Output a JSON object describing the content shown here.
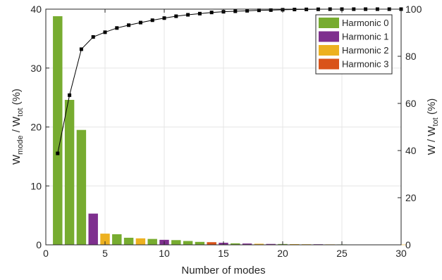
{
  "chart_data": {
    "type": "bar",
    "xlabel": "Number of modes",
    "ylabel_left": {
      "main": "W",
      "sub1": "mode",
      "mid": " / W",
      "sub2": "tot",
      "end": " (%)"
    },
    "ylabel_right": {
      "main": "W / W",
      "sub": "tot",
      "end": " (%)"
    },
    "xlim": [
      0,
      30
    ],
    "ylim_left": [
      0,
      40
    ],
    "ylim_right": [
      0,
      100
    ],
    "xticks": [
      0,
      5,
      10,
      15,
      20,
      25,
      30
    ],
    "yticks_left": [
      0,
      10,
      20,
      30,
      40
    ],
    "yticks_right": [
      0,
      20,
      40,
      60,
      80,
      100
    ],
    "grid": true,
    "legend_position": "top-right",
    "colors": {
      "Harmonic 0": "#77ac30",
      "Harmonic 1": "#7e2f8e",
      "Harmonic 2": "#edb120",
      "Harmonic 3": "#d95319"
    },
    "legend": [
      "Harmonic 0",
      "Harmonic 1",
      "Harmonic 2",
      "Harmonic 3"
    ],
    "bars": [
      {
        "x": 1,
        "value": 38.8,
        "series": "Harmonic 0"
      },
      {
        "x": 2,
        "value": 24.6,
        "series": "Harmonic 0"
      },
      {
        "x": 3,
        "value": 19.5,
        "series": "Harmonic 0"
      },
      {
        "x": 4,
        "value": 5.3,
        "series": "Harmonic 1"
      },
      {
        "x": 5,
        "value": 1.9,
        "series": "Harmonic 2"
      },
      {
        "x": 6,
        "value": 1.8,
        "series": "Harmonic 0"
      },
      {
        "x": 7,
        "value": 1.2,
        "series": "Harmonic 0"
      },
      {
        "x": 8,
        "value": 1.1,
        "series": "Harmonic 2"
      },
      {
        "x": 9,
        "value": 1.0,
        "series": "Harmonic 0"
      },
      {
        "x": 10,
        "value": 0.85,
        "series": "Harmonic 1"
      },
      {
        "x": 11,
        "value": 0.8,
        "series": "Harmonic 0"
      },
      {
        "x": 12,
        "value": 0.65,
        "series": "Harmonic 0"
      },
      {
        "x": 13,
        "value": 0.5,
        "series": "Harmonic 0"
      },
      {
        "x": 14,
        "value": 0.45,
        "series": "Harmonic 3"
      },
      {
        "x": 15,
        "value": 0.35,
        "series": "Harmonic 1"
      },
      {
        "x": 16,
        "value": 0.25,
        "series": "Harmonic 0"
      },
      {
        "x": 17,
        "value": 0.22,
        "series": "Harmonic 1"
      },
      {
        "x": 18,
        "value": 0.18,
        "series": "Harmonic 2"
      },
      {
        "x": 19,
        "value": 0.15,
        "series": "Harmonic 1"
      },
      {
        "x": 20,
        "value": 0.14,
        "series": "Harmonic 0"
      },
      {
        "x": 21,
        "value": 0.12,
        "series": "Harmonic 2"
      },
      {
        "x": 22,
        "value": 0.1,
        "series": "Harmonic 2"
      },
      {
        "x": 23,
        "value": 0.1,
        "series": "Harmonic 1"
      },
      {
        "x": 24,
        "value": 0.08,
        "series": "Harmonic 2"
      },
      {
        "x": 25,
        "value": 0.07,
        "series": "Harmonic 0"
      },
      {
        "x": 26,
        "value": 0.06,
        "series": "Harmonic 2"
      },
      {
        "x": 27,
        "value": 0.05,
        "series": "Harmonic 1"
      },
      {
        "x": 28,
        "value": 0.05,
        "series": "Harmonic 2"
      },
      {
        "x": 29,
        "value": 0.04,
        "series": "Harmonic 0"
      },
      {
        "x": 30,
        "value": 0.04,
        "series": "Harmonic 2"
      }
    ],
    "cumulative": {
      "axis": "right",
      "x": [
        1,
        2,
        3,
        4,
        5,
        6,
        7,
        8,
        9,
        10,
        11,
        12,
        13,
        14,
        15,
        16,
        17,
        18,
        19,
        20,
        21,
        22,
        23,
        24,
        25,
        26,
        27,
        28,
        29,
        30
      ],
      "y": [
        38.8,
        63.5,
        83.0,
        88.2,
        90.2,
        92.0,
        93.2,
        94.3,
        95.3,
        96.2,
        97.0,
        97.6,
        98.1,
        98.6,
        98.9,
        99.1,
        99.3,
        99.5,
        99.6,
        99.75,
        99.85,
        99.9,
        99.95,
        100,
        100,
        100,
        100,
        100,
        100,
        100
      ]
    }
  }
}
